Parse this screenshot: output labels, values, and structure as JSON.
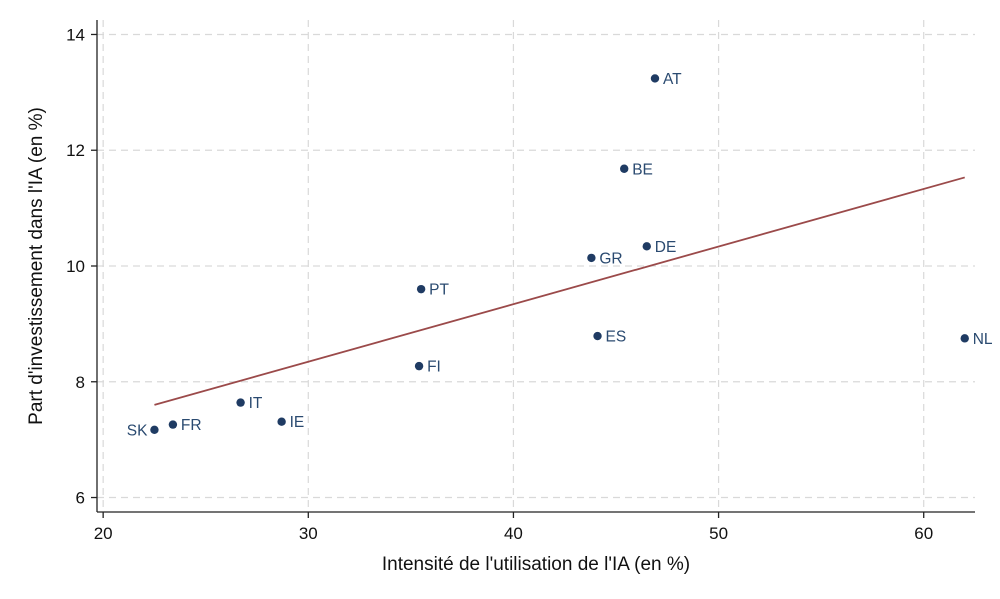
{
  "chart_data": {
    "type": "scatter",
    "title": "",
    "xlabel": "Intensité de l'utilisation de l'IA (en %)",
    "ylabel": "Part d'investissement dans l'IA (en %)",
    "xlim": [
      19.7,
      62.5
    ],
    "ylim": [
      5.75,
      14.25
    ],
    "xticks": [
      20,
      30,
      40,
      50,
      60
    ],
    "yticks": [
      6,
      8,
      10,
      12,
      14
    ],
    "grid": true,
    "colors": {
      "point": "#1f3b63",
      "label": "#2a4a70",
      "fit_line": "#9b4a4a",
      "grid": "#d9d9d9",
      "axis": "#222222"
    },
    "points": [
      {
        "label": "SK",
        "x": 22.5,
        "y": 7.17,
        "label_side": "left"
      },
      {
        "label": "FR",
        "x": 23.4,
        "y": 7.26,
        "label_side": "right"
      },
      {
        "label": "IT",
        "x": 26.7,
        "y": 7.64,
        "label_side": "right"
      },
      {
        "label": "IE",
        "x": 28.7,
        "y": 7.31,
        "label_side": "right"
      },
      {
        "label": "FI",
        "x": 35.4,
        "y": 8.27,
        "label_side": "right"
      },
      {
        "label": "PT",
        "x": 35.5,
        "y": 9.6,
        "label_side": "right"
      },
      {
        "label": "GR",
        "x": 43.8,
        "y": 10.14,
        "label_side": "right"
      },
      {
        "label": "ES",
        "x": 44.1,
        "y": 8.79,
        "label_side": "right"
      },
      {
        "label": "BE",
        "x": 45.4,
        "y": 11.68,
        "label_side": "right"
      },
      {
        "label": "DE",
        "x": 46.5,
        "y": 10.34,
        "label_side": "right"
      },
      {
        "label": "AT",
        "x": 46.9,
        "y": 13.24,
        "label_side": "right"
      },
      {
        "label": "NL",
        "x": 62.0,
        "y": 8.75,
        "label_side": "right"
      }
    ],
    "fit_line": {
      "x": [
        22.5,
        62.0
      ],
      "y": [
        7.6,
        11.53
      ]
    }
  }
}
